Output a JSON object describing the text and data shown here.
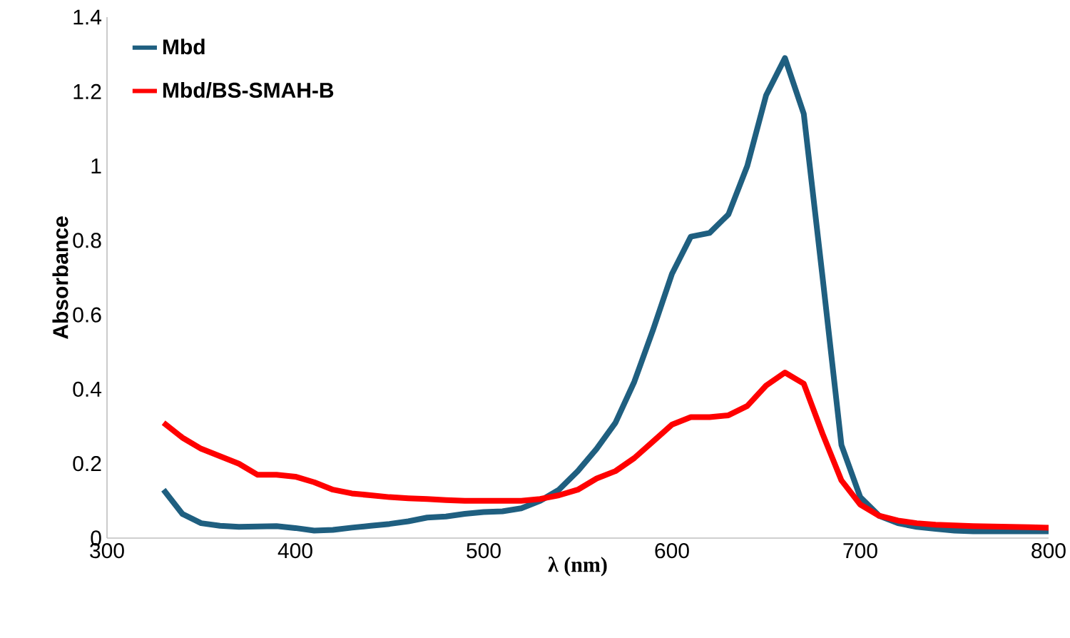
{
  "chart_data": {
    "type": "line",
    "xlabel": "λ (nm)",
    "ylabel": "Absorbance",
    "x": [
      330,
      340,
      350,
      360,
      370,
      380,
      390,
      400,
      410,
      420,
      430,
      440,
      450,
      460,
      470,
      480,
      490,
      500,
      510,
      520,
      530,
      540,
      550,
      560,
      570,
      580,
      590,
      600,
      610,
      620,
      630,
      640,
      650,
      660,
      670,
      680,
      690,
      700,
      710,
      720,
      730,
      740,
      750,
      760,
      770,
      780,
      790,
      800
    ],
    "series": [
      {
        "name": "Mbd",
        "color": "#1f5f80",
        "values": [
          0.13,
          0.065,
          0.04,
          0.033,
          0.03,
          0.031,
          0.032,
          0.027,
          0.02,
          0.022,
          0.028,
          0.033,
          0.038,
          0.045,
          0.055,
          0.058,
          0.065,
          0.07,
          0.072,
          0.08,
          0.1,
          0.13,
          0.18,
          0.24,
          0.31,
          0.42,
          0.56,
          0.71,
          0.81,
          0.82,
          0.87,
          1.0,
          1.19,
          1.29,
          1.14,
          0.7,
          0.25,
          0.11,
          0.06,
          0.04,
          0.03,
          0.025,
          0.02,
          0.018,
          0.018,
          0.018,
          0.018,
          0.018
        ]
      },
      {
        "name": "Mbd/BS-SMAH-B",
        "color": "#ff0000",
        "values": [
          0.31,
          0.27,
          0.24,
          0.22,
          0.2,
          0.17,
          0.17,
          0.165,
          0.15,
          0.13,
          0.12,
          0.115,
          0.11,
          0.107,
          0.105,
          0.102,
          0.1,
          0.1,
          0.1,
          0.1,
          0.105,
          0.115,
          0.13,
          0.16,
          0.18,
          0.215,
          0.26,
          0.305,
          0.325,
          0.325,
          0.33,
          0.355,
          0.41,
          0.445,
          0.415,
          0.28,
          0.155,
          0.09,
          0.06,
          0.047,
          0.04,
          0.036,
          0.034,
          0.032,
          0.031,
          0.03,
          0.029,
          0.028
        ]
      }
    ],
    "xlim": [
      300,
      800
    ],
    "ylim": [
      0,
      1.4
    ],
    "xticks": [
      300,
      400,
      500,
      600,
      700,
      800
    ],
    "yticks": [
      0,
      0.2,
      0.4,
      0.6,
      0.8,
      1,
      1.2,
      1.4
    ],
    "grid": false,
    "legend": "top left",
    "marker": "none",
    "line_style": "solid"
  }
}
